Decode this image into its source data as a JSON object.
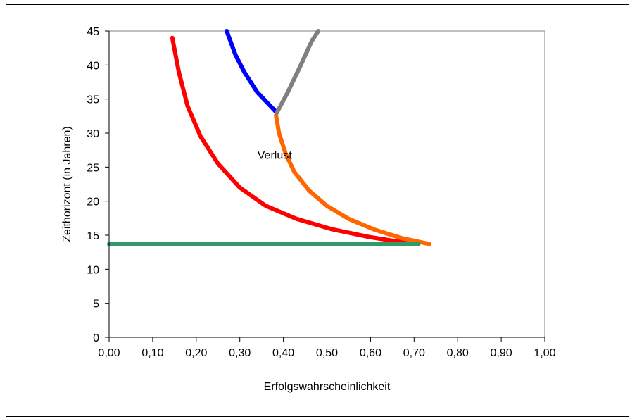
{
  "chart_data": {
    "type": "line",
    "xlabel": "Erfolgswahrscheinlichkeit",
    "ylabel": "Zeithorizont (in Jahren)",
    "xlim": [
      0,
      1
    ],
    "ylim": [
      0,
      45
    ],
    "x_ticks": [
      "0,00",
      "0,10",
      "0,20",
      "0,30",
      "0,40",
      "0,50",
      "0,60",
      "0,70",
      "0,80",
      "0,90",
      "1,00"
    ],
    "y_ticks": [
      "0",
      "5",
      "10",
      "15",
      "20",
      "25",
      "30",
      "35",
      "40",
      "45"
    ],
    "grid": false,
    "legend": "none",
    "annotations": [
      {
        "text": "Verlust",
        "x": 0.38,
        "y": 26.2
      }
    ],
    "series": [
      {
        "color": "#ff0000",
        "points": [
          [
            0.145,
            44.0
          ],
          [
            0.16,
            39.0
          ],
          [
            0.18,
            34.0
          ],
          [
            0.21,
            29.5
          ],
          [
            0.25,
            25.5
          ],
          [
            0.3,
            22.0
          ],
          [
            0.36,
            19.3
          ],
          [
            0.43,
            17.4
          ],
          [
            0.51,
            15.9
          ],
          [
            0.6,
            14.7
          ],
          [
            0.66,
            14.1
          ],
          [
            0.71,
            13.7
          ]
        ]
      },
      {
        "color": "#ff6600",
        "points": [
          [
            0.383,
            32.6
          ],
          [
            0.39,
            30.0
          ],
          [
            0.405,
            27.0
          ],
          [
            0.425,
            24.3
          ],
          [
            0.46,
            21.5
          ],
          [
            0.5,
            19.3
          ],
          [
            0.55,
            17.4
          ],
          [
            0.61,
            15.8
          ],
          [
            0.67,
            14.6
          ],
          [
            0.735,
            13.7
          ]
        ]
      },
      {
        "color": "#0000ff",
        "points": [
          [
            0.27,
            45.0
          ],
          [
            0.29,
            41.5
          ],
          [
            0.31,
            39.0
          ],
          [
            0.34,
            36.0
          ],
          [
            0.385,
            33.0
          ]
        ]
      },
      {
        "color": "#808080",
        "points": [
          [
            0.385,
            33.0
          ],
          [
            0.41,
            36.0
          ],
          [
            0.44,
            40.0
          ],
          [
            0.465,
            43.5
          ],
          [
            0.48,
            45.0
          ]
        ]
      },
      {
        "color": "#339966",
        "points": [
          [
            0.0,
            13.7
          ],
          [
            0.71,
            13.7
          ]
        ]
      }
    ]
  }
}
